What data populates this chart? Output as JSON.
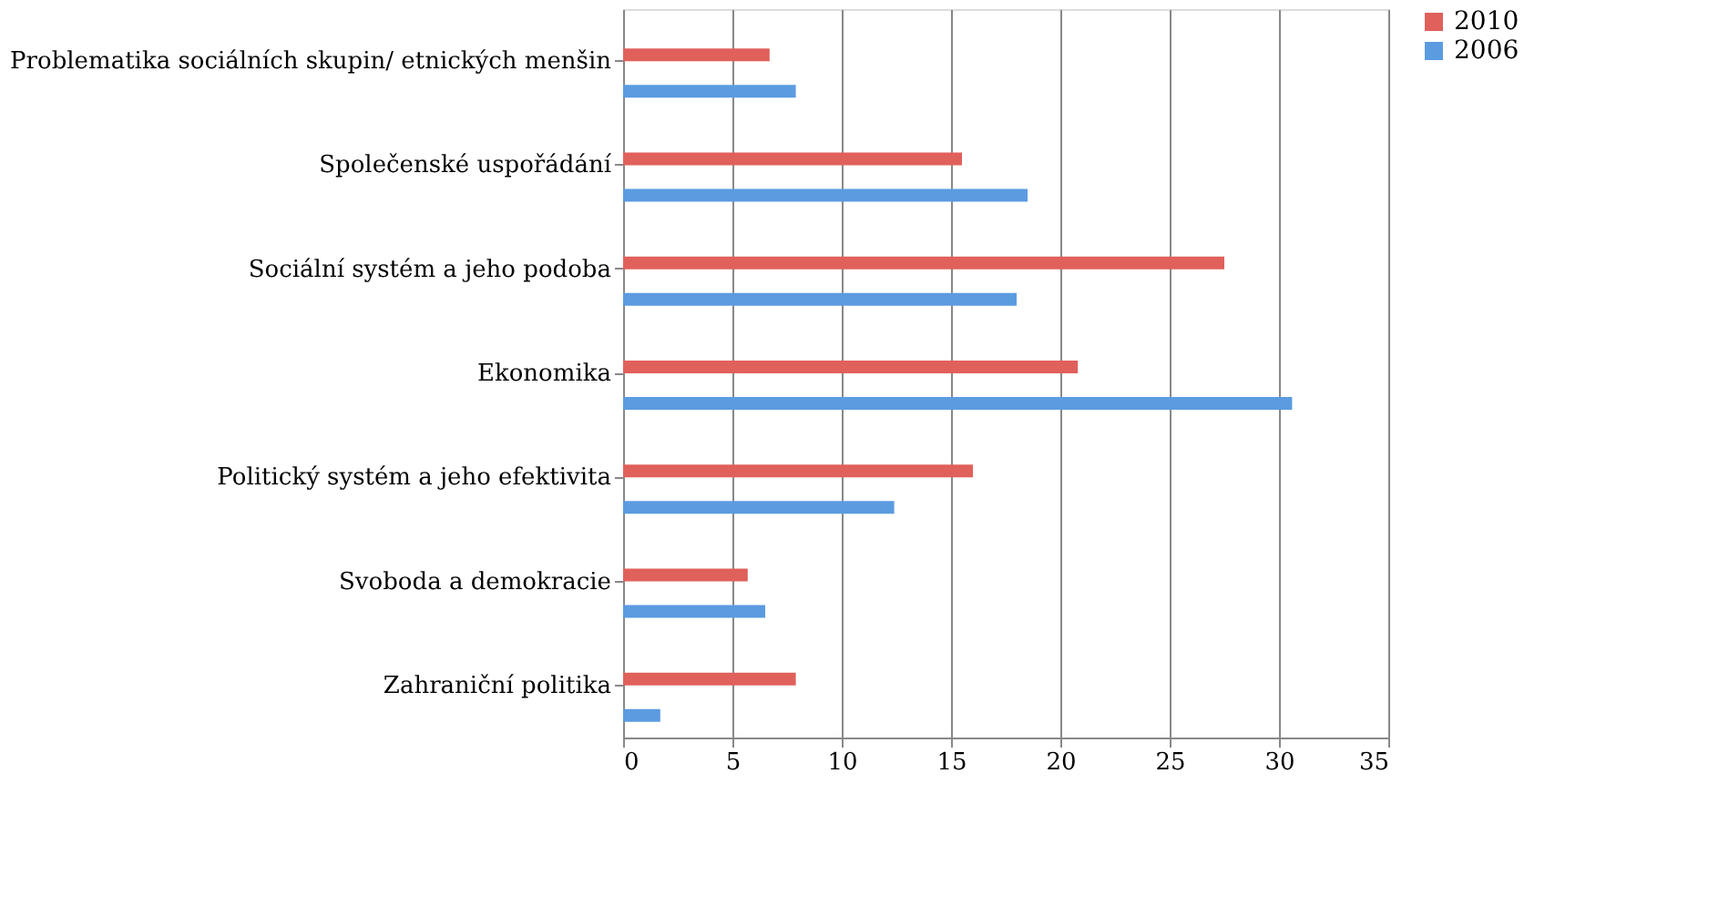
{
  "chart_data": {
    "type": "bar",
    "orientation": "horizontal",
    "categories": [
      "Problematika sociálních skupin/ etnických menšin",
      "Společenské uspořádání",
      "Sociální systém a jeho podoba",
      "Ekonomika",
      "Politický systém a jeho efektivita",
      "Svoboda a demokracie",
      "Zahraniční politika"
    ],
    "series": [
      {
        "name": "2010",
        "color": "#e0605c",
        "values": [
          6.7,
          15.5,
          27.5,
          20.8,
          16.0,
          5.7,
          7.9
        ]
      },
      {
        "name": "2006",
        "color": "#5b9be0",
        "values": [
          7.9,
          18.5,
          18.0,
          30.6,
          12.4,
          6.5,
          1.7
        ]
      }
    ],
    "xlim": [
      0,
      35
    ],
    "xticks": [
      0,
      5,
      10,
      15,
      20,
      25,
      30,
      35
    ],
    "grid": "x",
    "legend": "right"
  }
}
